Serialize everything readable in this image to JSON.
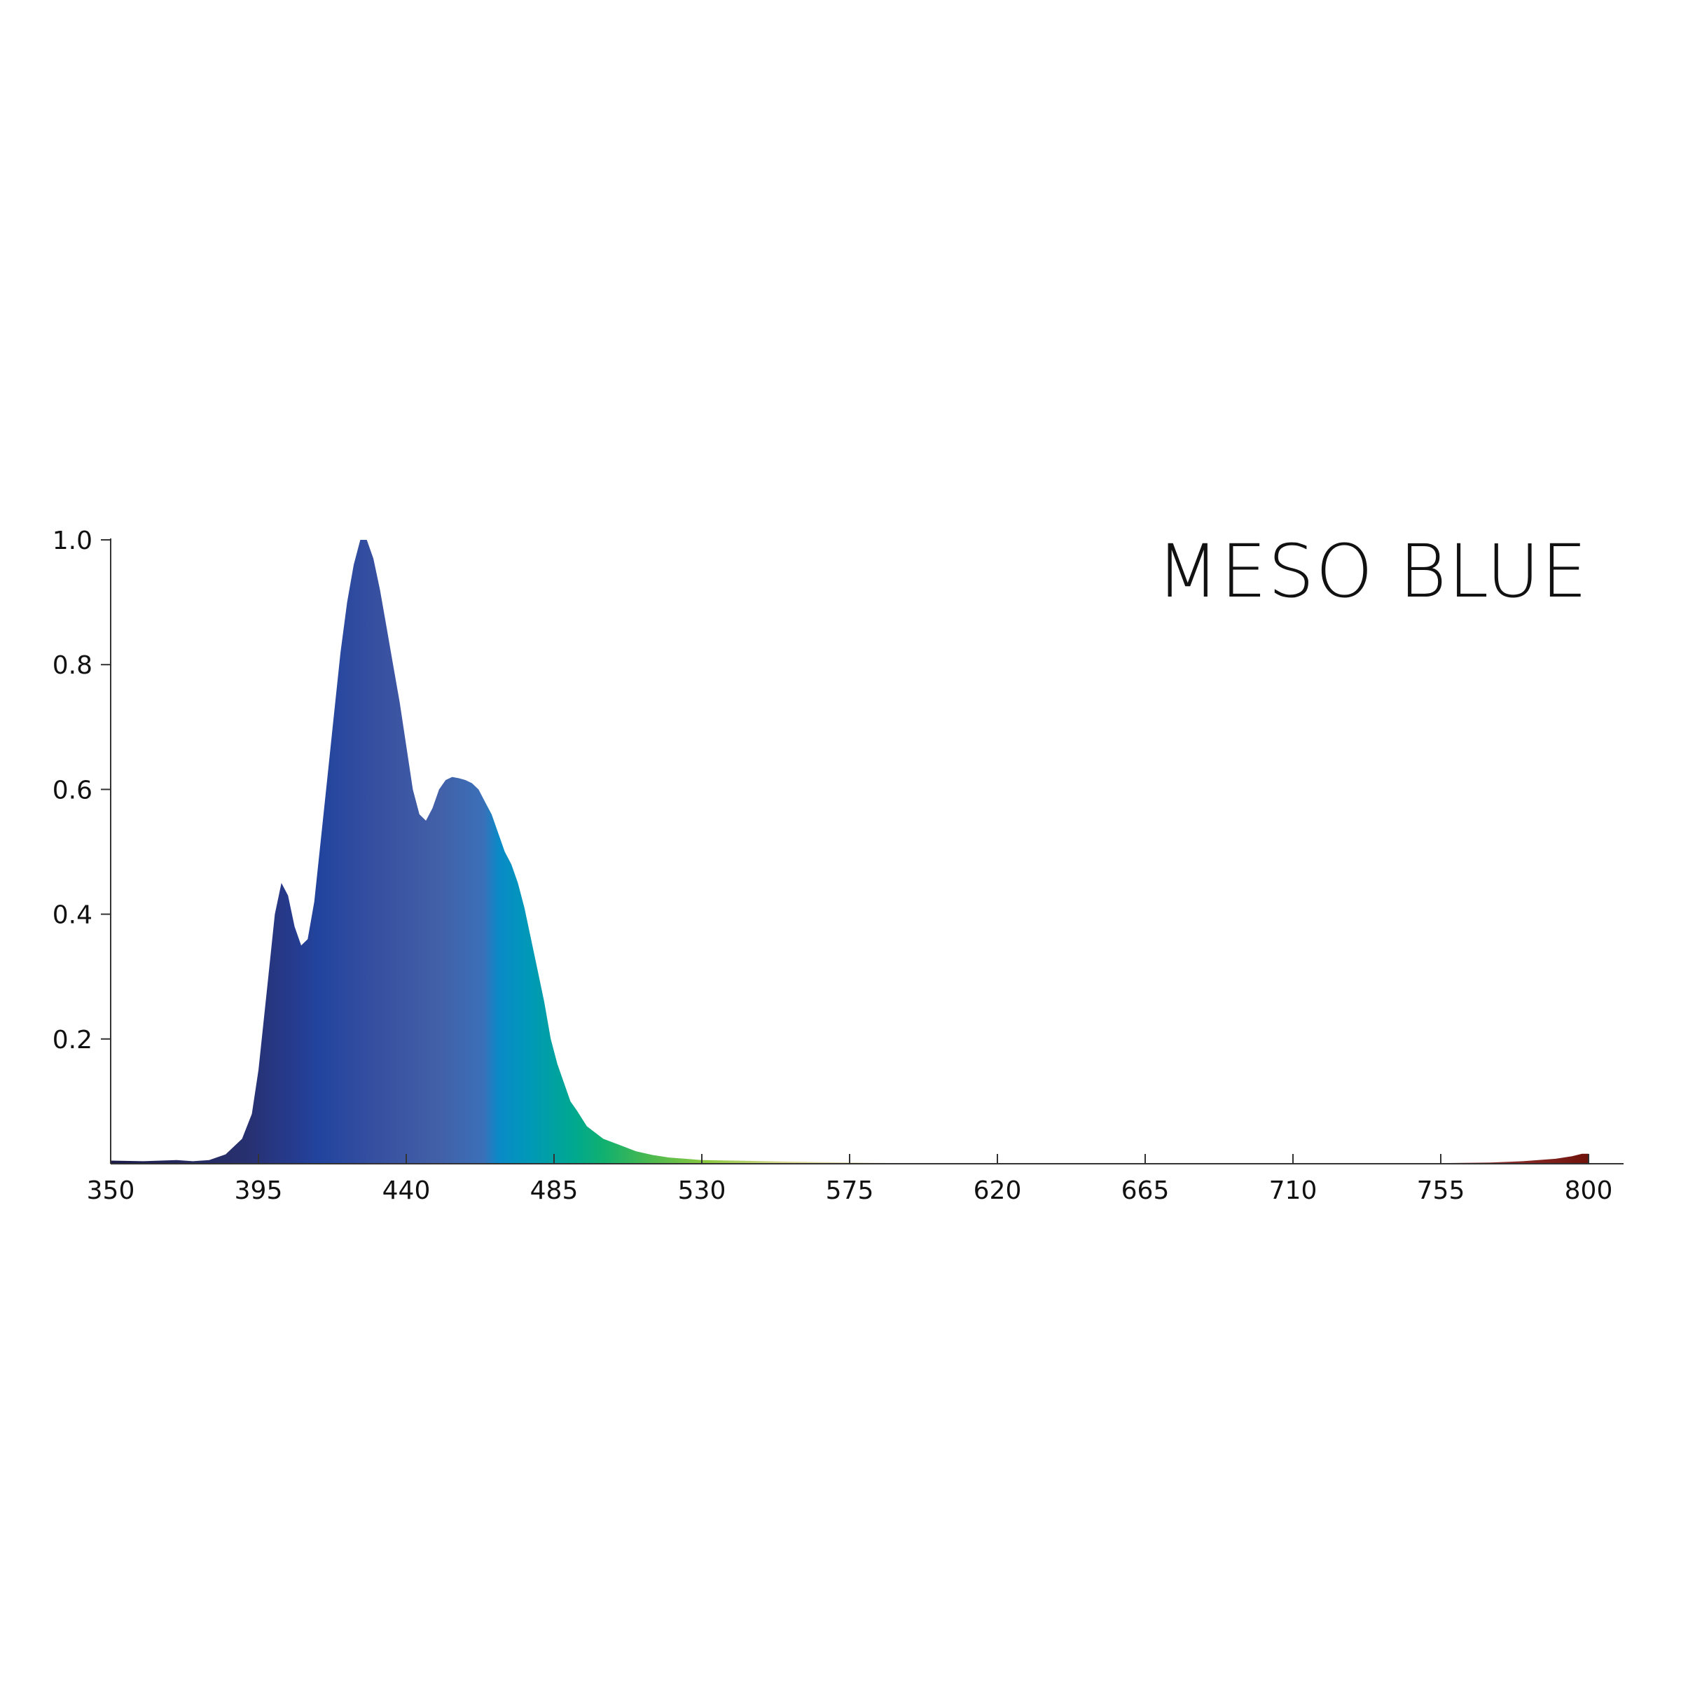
{
  "chart_data": {
    "type": "area",
    "title": "MESO BLUE",
    "xlabel": "",
    "ylabel": "",
    "xlim": [
      350,
      800
    ],
    "ylim": [
      0,
      1.0
    ],
    "x_ticks": [
      350,
      395,
      440,
      485,
      530,
      575,
      620,
      665,
      710,
      755,
      800
    ],
    "x_tick_labels": [
      "350",
      "395",
      "440",
      "485",
      "530",
      "575",
      "620",
      "665",
      "710",
      "755",
      "800"
    ],
    "y_ticks": [
      0.2,
      0.4,
      0.6,
      0.8,
      1.0
    ],
    "y_tick_labels": [
      "0.2",
      "0.4",
      "0.6",
      "0.8",
      "1.0"
    ],
    "grid": false,
    "fill": "wavelength-colored spectrum",
    "series": [
      {
        "x": [
          350,
          360,
          370,
          375,
          380,
          385,
          390,
          393,
          395,
          398,
          400,
          402,
          404,
          406,
          408,
          410,
          412,
          414,
          416,
          418,
          420,
          422,
          424,
          426,
          428,
          430,
          432,
          434,
          436,
          438,
          440,
          442,
          444,
          446,
          448,
          450,
          452,
          454,
          456,
          458,
          460,
          462,
          464,
          466,
          468,
          470,
          472,
          474,
          476,
          478,
          480,
          482,
          484,
          486,
          488,
          490,
          492,
          495,
          500,
          505,
          510,
          515,
          520,
          525,
          530,
          540,
          550,
          560,
          575,
          590,
          620,
          665,
          710,
          755,
          770,
          780,
          790,
          795,
          798,
          800
        ],
        "values": [
          0.005,
          0.004,
          0.006,
          0.004,
          0.006,
          0.015,
          0.04,
          0.08,
          0.15,
          0.3,
          0.4,
          0.45,
          0.43,
          0.38,
          0.35,
          0.36,
          0.42,
          0.52,
          0.62,
          0.72,
          0.82,
          0.9,
          0.96,
          1.0,
          1.0,
          0.97,
          0.92,
          0.86,
          0.8,
          0.74,
          0.67,
          0.6,
          0.56,
          0.55,
          0.57,
          0.6,
          0.615,
          0.62,
          0.618,
          0.615,
          0.61,
          0.6,
          0.58,
          0.56,
          0.53,
          0.5,
          0.48,
          0.45,
          0.41,
          0.36,
          0.31,
          0.26,
          0.2,
          0.16,
          0.13,
          0.1,
          0.085,
          0.06,
          0.04,
          0.03,
          0.02,
          0.014,
          0.01,
          0.008,
          0.006,
          0.005,
          0.004,
          0.003,
          0.002,
          0.001,
          0.001,
          0.001,
          0.001,
          0.001,
          0.002,
          0.004,
          0.008,
          0.012,
          0.016,
          0.016
        ]
      }
    ]
  }
}
